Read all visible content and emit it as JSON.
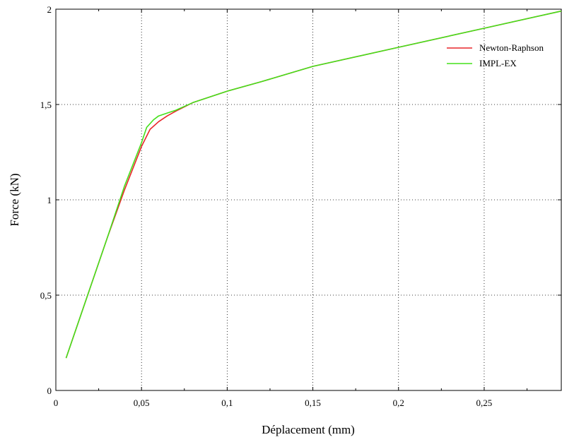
{
  "chart_data": {
    "type": "line",
    "title": "",
    "xlabel": "Déplacement (mm)",
    "ylabel": "Force (kN)",
    "xlim": [
      0,
      0.295
    ],
    "ylim": [
      0,
      2
    ],
    "grid": true,
    "legend_position": "top-right",
    "x_ticks": [
      {
        "value": 0,
        "label": "0"
      },
      {
        "value": 0.05,
        "label": "0,05"
      },
      {
        "value": 0.1,
        "label": "0,1"
      },
      {
        "value": 0.15,
        "label": "0,15"
      },
      {
        "value": 0.2,
        "label": "0,2"
      },
      {
        "value": 0.25,
        "label": "0,25"
      }
    ],
    "y_ticks": [
      {
        "value": 0,
        "label": "0"
      },
      {
        "value": 0.5,
        "label": "0,5"
      },
      {
        "value": 1,
        "label": "1"
      },
      {
        "value": 1.5,
        "label": "1,5"
      },
      {
        "value": 2,
        "label": "2"
      }
    ],
    "series": [
      {
        "name": "Newton-Raphson",
        "color": "#e8272a",
        "x": [
          0.006,
          0.03,
          0.04,
          0.05,
          0.055,
          0.06,
          0.065,
          0.07,
          0.08,
          0.1,
          0.12,
          0.15,
          0.2,
          0.25,
          0.295
        ],
        "y": [
          0.17,
          0.8,
          1.05,
          1.28,
          1.37,
          1.41,
          1.44,
          1.465,
          1.51,
          1.57,
          1.62,
          1.7,
          1.8,
          1.9,
          1.99
        ]
      },
      {
        "name": "IMPL-EX",
        "color": "#44e01a",
        "x": [
          0.006,
          0.03,
          0.04,
          0.05,
          0.053,
          0.057,
          0.06,
          0.065,
          0.07,
          0.08,
          0.1,
          0.12,
          0.15,
          0.2,
          0.25,
          0.295
        ],
        "y": [
          0.17,
          0.8,
          1.07,
          1.3,
          1.38,
          1.42,
          1.44,
          1.455,
          1.47,
          1.51,
          1.57,
          1.62,
          1.7,
          1.8,
          1.9,
          1.99
        ]
      }
    ]
  }
}
